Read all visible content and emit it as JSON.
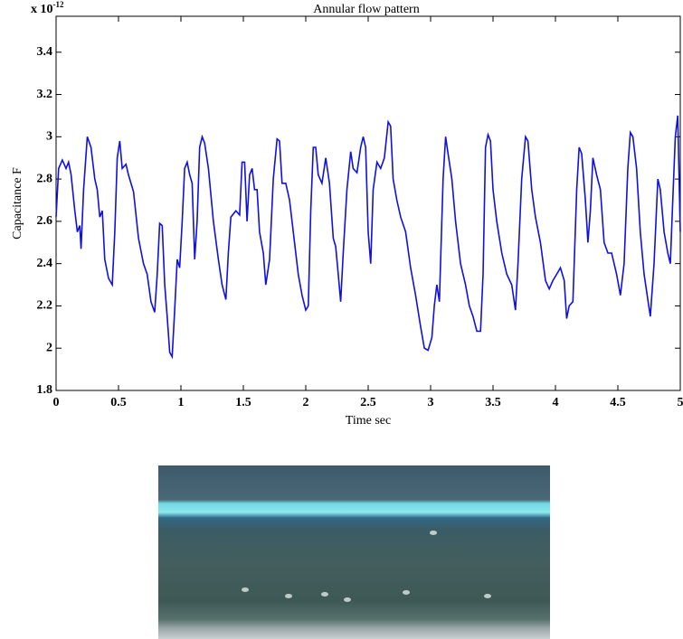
{
  "chart_data": {
    "type": "line",
    "title": "Annular flow pattern",
    "x_label": "Time sec",
    "y_label": "Capacitance F",
    "y_multiplier": {
      "base": "x 10",
      "exponent": "-12"
    },
    "xlim": [
      0,
      5
    ],
    "xticks": [
      0,
      0.5,
      1,
      1.5,
      2,
      2.5,
      3,
      3.5,
      4,
      4.5,
      5
    ],
    "ylim": [
      1.8,
      3.57
    ],
    "yticks": [
      1.8,
      2,
      2.2,
      2.4,
      2.6,
      2.8,
      3,
      3.2,
      3.4
    ],
    "color": "#1010e0",
    "x": [
      0,
      0.02,
      0.05,
      0.08,
      0.1,
      0.12,
      0.15,
      0.17,
      0.19,
      0.2,
      0.22,
      0.25,
      0.28,
      0.31,
      0.33,
      0.35,
      0.37,
      0.39,
      0.42,
      0.45,
      0.47,
      0.49,
      0.51,
      0.53,
      0.56,
      0.58,
      0.62,
      0.66,
      0.7,
      0.73,
      0.76,
      0.79,
      0.81,
      0.83,
      0.85,
      0.87,
      0.89,
      0.91,
      0.93,
      0.95,
      0.97,
      0.99,
      1.01,
      1.03,
      1.05,
      1.07,
      1.09,
      1.11,
      1.13,
      1.15,
      1.17,
      1.19,
      1.22,
      1.26,
      1.3,
      1.33,
      1.36,
      1.38,
      1.4,
      1.44,
      1.47,
      1.49,
      1.51,
      1.53,
      1.55,
      1.57,
      1.59,
      1.61,
      1.63,
      1.66,
      1.68,
      1.71,
      1.74,
      1.77,
      1.79,
      1.81,
      1.84,
      1.87,
      1.9,
      1.94,
      1.97,
      2,
      2.02,
      2.04,
      2.06,
      2.08,
      2.1,
      2.13,
      2.16,
      2.19,
      2.22,
      2.24,
      2.26,
      2.28,
      2.3,
      2.33,
      2.36,
      2.38,
      2.41,
      2.44,
      2.46,
      2.48,
      2.5,
      2.52,
      2.54,
      2.57,
      2.6,
      2.63,
      2.66,
      2.68,
      2.7,
      2.73,
      2.76,
      2.8,
      2.84,
      2.88,
      2.92,
      2.95,
      2.98,
      3.01,
      3.03,
      3.05,
      3.07,
      3.1,
      3.12,
      3.14,
      3.17,
      3.2,
      3.24,
      3.28,
      3.31,
      3.34,
      3.37,
      3.4,
      3.42,
      3.44,
      3.46,
      3.48,
      3.5,
      3.53,
      3.57,
      3.61,
      3.65,
      3.68,
      3.7,
      3.73,
      3.76,
      3.78,
      3.81,
      3.84,
      3.88,
      3.92,
      3.95,
      3.98,
      4.01,
      4.04,
      4.07,
      4.09,
      4.11,
      4.14,
      4.17,
      4.19,
      4.21,
      4.24,
      4.26,
      4.28,
      4.3,
      4.33,
      4.36,
      4.39,
      4.42,
      4.45,
      4.49,
      4.52,
      4.55,
      4.58,
      4.6,
      4.62,
      4.65,
      4.68,
      4.71,
      4.74,
      4.76,
      4.79,
      4.82,
      4.84,
      4.87,
      4.9,
      4.92,
      4.94,
      4.96,
      4.98,
      5
    ],
    "values": [
      2.62,
      2.85,
      2.89,
      2.85,
      2.88,
      2.82,
      2.65,
      2.55,
      2.58,
      2.47,
      2.75,
      3.0,
      2.95,
      2.8,
      2.75,
      2.62,
      2.65,
      2.42,
      2.33,
      2.3,
      2.55,
      2.9,
      2.98,
      2.85,
      2.87,
      2.82,
      2.74,
      2.52,
      2.4,
      2.35,
      2.22,
      2.17,
      2.35,
      2.59,
      2.58,
      2.3,
      2.15,
      1.98,
      1.96,
      2.18,
      2.42,
      2.38,
      2.6,
      2.85,
      2.88,
      2.82,
      2.78,
      2.42,
      2.6,
      2.95,
      3.0,
      2.97,
      2.85,
      2.6,
      2.42,
      2.3,
      2.23,
      2.45,
      2.62,
      2.65,
      2.63,
      2.88,
      2.88,
      2.6,
      2.82,
      2.85,
      2.75,
      2.75,
      2.55,
      2.45,
      2.3,
      2.42,
      2.8,
      2.99,
      2.98,
      2.78,
      2.78,
      2.7,
      2.55,
      2.35,
      2.25,
      2.18,
      2.2,
      2.65,
      2.95,
      2.95,
      2.82,
      2.78,
      2.9,
      2.78,
      2.52,
      2.48,
      2.35,
      2.22,
      2.45,
      2.75,
      2.93,
      2.85,
      2.83,
      2.95,
      3.0,
      2.95,
      2.55,
      2.4,
      2.75,
      2.88,
      2.85,
      2.9,
      3.07,
      3.05,
      2.8,
      2.7,
      2.62,
      2.55,
      2.38,
      2.25,
      2.1,
      2.0,
      1.99,
      2.05,
      2.2,
      2.3,
      2.22,
      2.8,
      3.0,
      2.92,
      2.8,
      2.6,
      2.4,
      2.3,
      2.2,
      2.15,
      2.08,
      2.08,
      2.35,
      2.95,
      3.01,
      2.98,
      2.75,
      2.6,
      2.45,
      2.35,
      2.3,
      2.18,
      2.4,
      2.8,
      3.0,
      2.98,
      2.75,
      2.62,
      2.5,
      2.32,
      2.28,
      2.32,
      2.35,
      2.38,
      2.32,
      2.14,
      2.2,
      2.22,
      2.75,
      2.95,
      2.92,
      2.7,
      2.5,
      2.65,
      2.9,
      2.82,
      2.75,
      2.5,
      2.45,
      2.45,
      2.35,
      2.25,
      2.4,
      2.85,
      3.02,
      3.0,
      2.85,
      2.55,
      2.35,
      2.23,
      2.15,
      2.4,
      2.8,
      2.75,
      2.55,
      2.45,
      2.4,
      2.7,
      3.0,
      3.1,
      2.55
    ]
  }
}
